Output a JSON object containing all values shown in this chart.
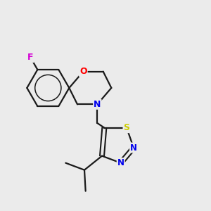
{
  "background_color": "#ebebeb",
  "bond_color": "#1a1a1a",
  "atom_colors": {
    "F": "#d400d4",
    "O": "#ff0000",
    "N": "#0000ee",
    "S": "#cccc00",
    "C": "#1a1a1a"
  },
  "figsize": [
    3.0,
    3.0
  ],
  "dpi": 100
}
